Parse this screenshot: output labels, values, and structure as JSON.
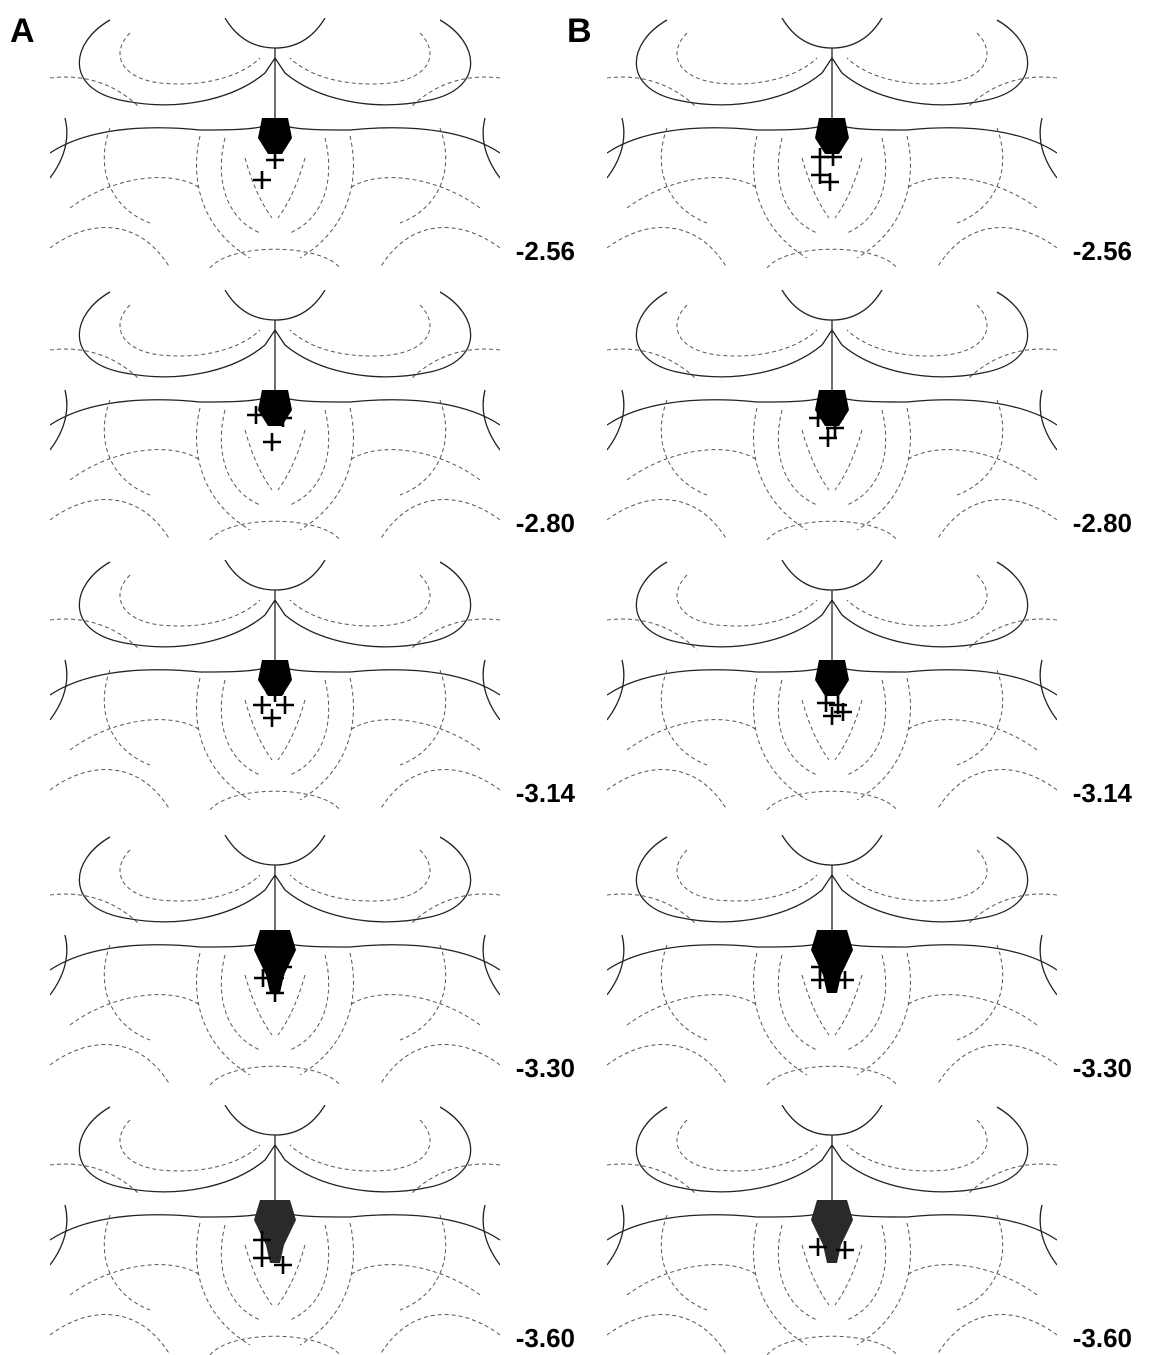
{
  "panels": [
    {
      "label": "A",
      "sections": [
        "-2.56",
        "-2.80",
        "-3.14",
        "-3.30",
        "-3.60"
      ]
    },
    {
      "label": "B",
      "sections": [
        "-2.56",
        "-2.80",
        "-3.14",
        "-3.30",
        "-3.60"
      ]
    }
  ]
}
